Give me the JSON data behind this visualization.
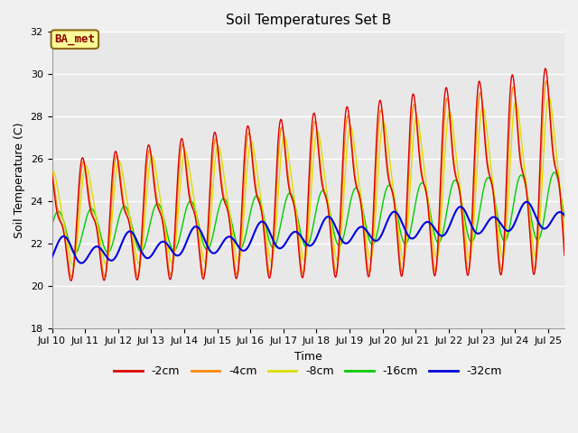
{
  "title": "Soil Temperatures Set B",
  "xlabel": "Time",
  "ylabel": "Soil Temperature (C)",
  "ylim": [
    18,
    32
  ],
  "background_color": "#f0f0f0",
  "plot_bg_color": "#e8e8e8",
  "grid_color": "#ffffff",
  "annotation_text": "BA_met",
  "annotation_box_color": "#ffff99",
  "annotation_border_color": "#8B6914",
  "annotation_text_color": "#8B0000",
  "colors": {
    "neg2cm": "#dd0000",
    "neg4cm": "#ff8800",
    "neg8cm": "#dddd00",
    "neg16cm": "#00cc00",
    "neg32cm": "#0000dd"
  },
  "legend_labels": [
    "-2cm",
    "-4cm",
    "-8cm",
    "-16cm",
    "-32cm"
  ],
  "x_tick_labels": [
    "Jul 10",
    "Jul 11",
    "Jul 12",
    "Jul 13",
    "Jul 14",
    "Jul 15",
    "Jul 16",
    "Jul 17",
    "Jul 18",
    "Jul 19",
    "Jul 20",
    "Jul 21",
    "Jul 22",
    "Jul 23",
    "Jul 24",
    "Jul 25"
  ],
  "n_points": 3000,
  "days": 15.5
}
